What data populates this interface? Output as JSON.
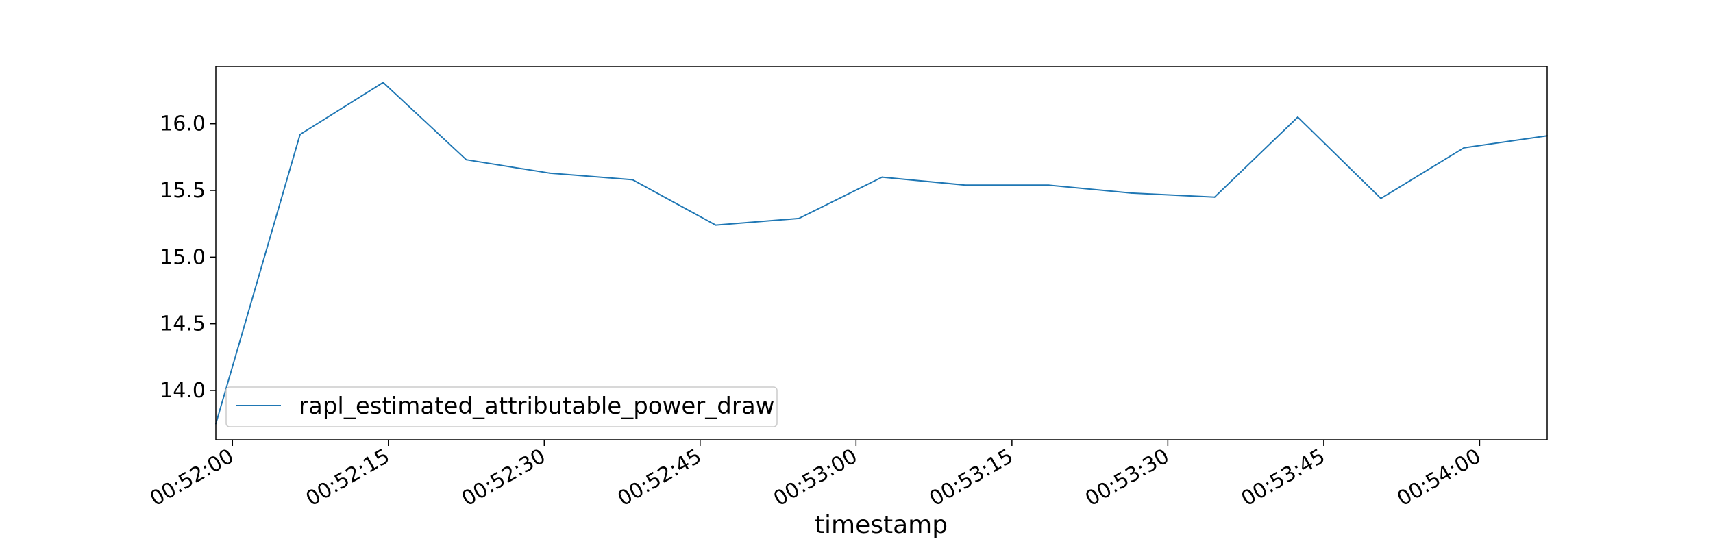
{
  "chart_data": {
    "type": "line",
    "xlabel": "timestamp",
    "ylabel": "",
    "x_ticks": [
      "00:52:00",
      "00:52:15",
      "00:52:30",
      "00:52:45",
      "00:53:00",
      "00:53:15",
      "00:53:30",
      "00:53:45",
      "00:54:00"
    ],
    "y_ticks": [
      "14.0",
      "14.5",
      "15.0",
      "15.5",
      "16.0"
    ],
    "xlim": [
      "00:51:58.4",
      "00:54:06.5"
    ],
    "ylim": [
      13.63,
      16.43
    ],
    "legend_position": "lower-left",
    "grid": false,
    "series": [
      {
        "name": "rapl_estimated_attributable_power_draw",
        "color": "#1f77b4",
        "x": [
          "00:51:58.4",
          "00:52:06.5",
          "00:52:14.5",
          "00:52:22.5",
          "00:52:30.5",
          "00:52:38.5",
          "00:52:46.5",
          "00:52:54.5",
          "00:53:02.5",
          "00:53:10.5",
          "00:53:18.5",
          "00:53:26.5",
          "00:53:34.5",
          "00:53:42.5",
          "00:53:50.5",
          "00:53:58.5",
          "00:54:06.5"
        ],
        "y": [
          13.75,
          15.92,
          16.31,
          15.73,
          15.63,
          15.58,
          15.24,
          15.29,
          15.6,
          15.54,
          15.54,
          15.48,
          15.45,
          16.05,
          15.44,
          15.82,
          15.91
        ]
      }
    ]
  }
}
